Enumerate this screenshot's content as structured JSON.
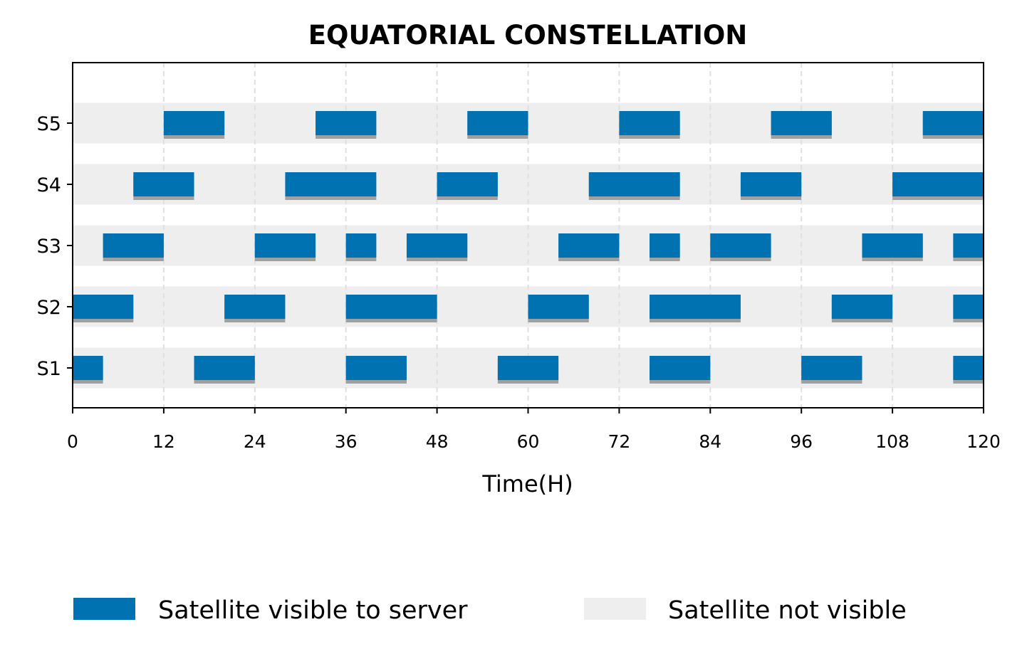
{
  "chart_data": {
    "type": "timeline",
    "title": "EQUATORIAL CONSTELLATION",
    "xlabel": "Time(H)",
    "ylabel": "",
    "xlim": [
      0,
      120
    ],
    "xticks": [
      0,
      12,
      24,
      36,
      48,
      60,
      72,
      84,
      96,
      108,
      120
    ],
    "grid": "vertical dashed at x ticks",
    "legend_placement": "bottom",
    "legend": [
      {
        "label": "Satellite visible to server",
        "color": "#0072B2"
      },
      {
        "label": "Satellite not visible",
        "color": "#EEEEEE"
      }
    ],
    "colors": {
      "visible": "#0072B2",
      "background": "#EEEEEE",
      "shadow": "#A0A0A0",
      "grid": "#E0E0E0"
    },
    "satellites": [
      {
        "name": "S1",
        "windows": [
          [
            0,
            4
          ],
          [
            16,
            24
          ],
          [
            36,
            44
          ],
          [
            56,
            64
          ],
          [
            76,
            84
          ],
          [
            96,
            104
          ],
          [
            116,
            120
          ]
        ]
      },
      {
        "name": "S2",
        "windows": [
          [
            0,
            8
          ],
          [
            20,
            28
          ],
          [
            36,
            48
          ],
          [
            60,
            68
          ],
          [
            76,
            88
          ],
          [
            100,
            108
          ],
          [
            116,
            120
          ]
        ]
      },
      {
        "name": "S3",
        "windows": [
          [
            4,
            12
          ],
          [
            24,
            32
          ],
          [
            36,
            40
          ],
          [
            44,
            52
          ],
          [
            64,
            72
          ],
          [
            76,
            80
          ],
          [
            84,
            92
          ],
          [
            104,
            112
          ],
          [
            116,
            120
          ]
        ]
      },
      {
        "name": "S4",
        "windows": [
          [
            8,
            16
          ],
          [
            28,
            40
          ],
          [
            48,
            56
          ],
          [
            68,
            80
          ],
          [
            88,
            96
          ],
          [
            108,
            120
          ]
        ]
      },
      {
        "name": "S5",
        "windows": [
          [
            12,
            20
          ],
          [
            32,
            40
          ],
          [
            52,
            60
          ],
          [
            72,
            80
          ],
          [
            92,
            100
          ],
          [
            112,
            120
          ]
        ]
      }
    ]
  }
}
